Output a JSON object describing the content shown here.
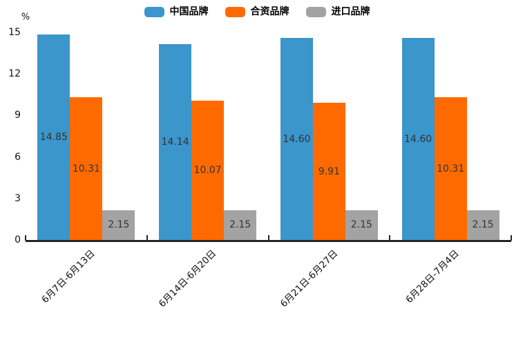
{
  "chart_data": {
    "type": "bar",
    "title": "",
    "unit_label": "%",
    "categories": [
      "6月7日-6月13日",
      "6月14日-6月20日",
      "6月21日-6月27日",
      "6月28日-7月4日"
    ],
    "series": [
      {
        "name": "中国品牌",
        "color": "#3A96CB",
        "values": [
          14.85,
          14.14,
          14.6,
          14.6
        ]
      },
      {
        "name": "合资品牌",
        "color": "#FF6A00",
        "values": [
          10.31,
          10.07,
          9.91,
          10.31
        ]
      },
      {
        "name": "进口品牌",
        "color": "#A3A3A3",
        "values": [
          2.15,
          2.15,
          2.15,
          2.15
        ]
      }
    ],
    "value_label_format_decimals": 2,
    "ylim": [
      0,
      15
    ],
    "yticks": [
      0,
      3,
      6,
      9,
      12,
      15
    ],
    "grid": false,
    "legend_position": "top-center",
    "x_label_rotation_deg": 45,
    "colors": {
      "axis": "#262626",
      "tick_text": "#111111",
      "value_label_text": "#333333"
    }
  }
}
